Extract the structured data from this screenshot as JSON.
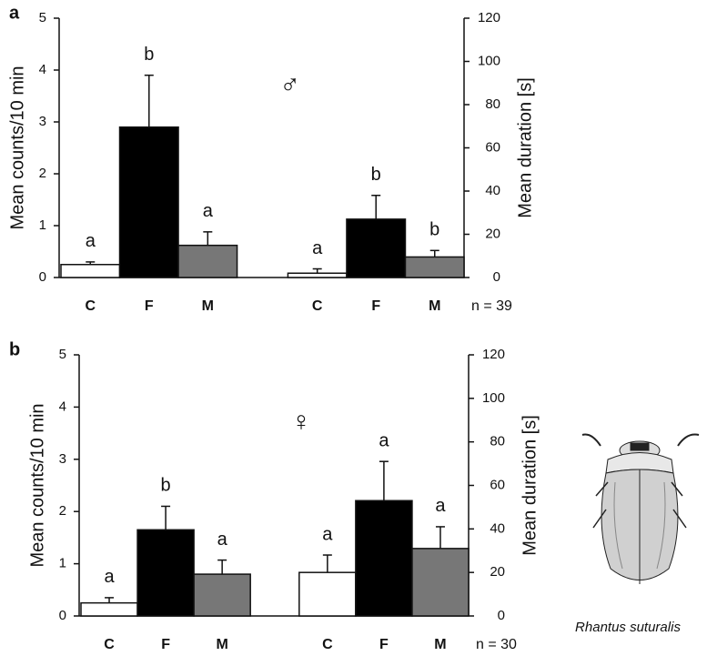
{
  "chart_data": [
    {
      "type": "bar",
      "panel_label": "a",
      "symbol": "♂",
      "n_label": "n = 39",
      "ylabel": "Mean counts/10 min",
      "y2label": "Mean duration [s]",
      "ylim": [
        0,
        5
      ],
      "yticks": [
        0,
        1,
        2,
        3,
        4,
        5
      ],
      "y2lim": [
        0,
        120
      ],
      "y2ticks": [
        0,
        20,
        40,
        60,
        80,
        100,
        120
      ],
      "groups": [
        {
          "axis": "y",
          "categories": [
            "C",
            "F",
            "M"
          ],
          "values": [
            0.25,
            2.9,
            0.62
          ],
          "errors": [
            0.05,
            1.0,
            0.26
          ],
          "sig_labels": [
            "a",
            "b",
            "a"
          ],
          "colors": [
            "#ffffff",
            "#000000",
            "#777777"
          ]
        },
        {
          "axis": "y2",
          "categories": [
            "C",
            "F",
            "M"
          ],
          "values": [
            2,
            27,
            9.5
          ],
          "errors": [
            2,
            11,
            3
          ],
          "sig_labels": [
            "a",
            "b",
            "b"
          ],
          "colors": [
            "#ffffff",
            "#000000",
            "#777777"
          ]
        }
      ]
    },
    {
      "type": "bar",
      "panel_label": "b",
      "symbol": "♀",
      "n_label": "n = 30",
      "ylabel": "Mean counts/10 min",
      "y2label": "Mean duration [s]",
      "ylim": [
        0,
        5
      ],
      "yticks": [
        0,
        1,
        2,
        3,
        4,
        5
      ],
      "y2lim": [
        0,
        120
      ],
      "y2ticks": [
        0,
        20,
        40,
        60,
        80,
        100,
        120
      ],
      "groups": [
        {
          "axis": "y",
          "categories": [
            "C",
            "F",
            "M"
          ],
          "values": [
            0.25,
            1.65,
            0.8
          ],
          "errors": [
            0.1,
            0.45,
            0.27
          ],
          "sig_labels": [
            "a",
            "b",
            "a"
          ],
          "colors": [
            "#ffffff",
            "#000000",
            "#777777"
          ]
        },
        {
          "axis": "y2",
          "categories": [
            "C",
            "F",
            "M"
          ],
          "values": [
            20,
            53,
            31
          ],
          "errors": [
            8,
            18,
            10
          ],
          "sig_labels": [
            "a",
            "a",
            "a"
          ],
          "colors": [
            "#ffffff",
            "#000000",
            "#777777"
          ]
        }
      ]
    }
  ],
  "species_caption": "Rhantus suturalis"
}
